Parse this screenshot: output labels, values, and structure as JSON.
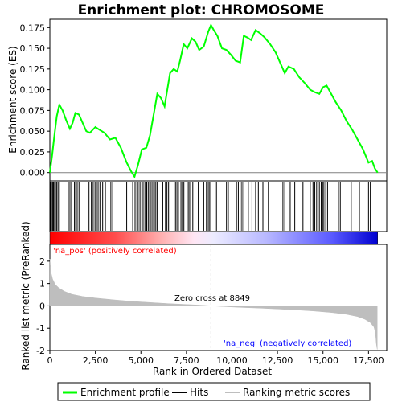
{
  "chart_data": {
    "type": "line",
    "title": "Enrichment plot: CHROMOSOME",
    "top_panel": {
      "ylabel": "Enrichment score (ES)",
      "ylim": [
        -0.01,
        0.185
      ],
      "yticks": [
        "0.000",
        "0.025",
        "0.050",
        "0.075",
        "0.100",
        "0.125",
        "0.150",
        "0.175"
      ],
      "ytick_values": [
        0.0,
        0.025,
        0.05,
        0.075,
        0.1,
        0.125,
        0.15,
        0.175
      ],
      "series_color": "#00ff00",
      "es_points": [
        [
          0,
          0.0
        ],
        [
          120,
          0.02
        ],
        [
          250,
          0.045
        ],
        [
          380,
          0.068
        ],
        [
          520,
          0.082
        ],
        [
          700,
          0.075
        ],
        [
          900,
          0.063
        ],
        [
          1100,
          0.053
        ],
        [
          1250,
          0.06
        ],
        [
          1400,
          0.072
        ],
        [
          1600,
          0.07
        ],
        [
          1800,
          0.06
        ],
        [
          2000,
          0.05
        ],
        [
          2200,
          0.048
        ],
        [
          2500,
          0.055
        ],
        [
          2700,
          0.052
        ],
        [
          3000,
          0.048
        ],
        [
          3300,
          0.04
        ],
        [
          3600,
          0.042
        ],
        [
          3900,
          0.03
        ],
        [
          4200,
          0.013
        ],
        [
          4450,
          0.002
        ],
        [
          4650,
          -0.005
        ],
        [
          4850,
          0.01
        ],
        [
          5050,
          0.028
        ],
        [
          5300,
          0.03
        ],
        [
          5500,
          0.045
        ],
        [
          5700,
          0.07
        ],
        [
          5900,
          0.095
        ],
        [
          6100,
          0.09
        ],
        [
          6300,
          0.08
        ],
        [
          6450,
          0.1
        ],
        [
          6600,
          0.12
        ],
        [
          6800,
          0.125
        ],
        [
          7000,
          0.122
        ],
        [
          7150,
          0.135
        ],
        [
          7350,
          0.155
        ],
        [
          7550,
          0.15
        ],
        [
          7800,
          0.162
        ],
        [
          8000,
          0.158
        ],
        [
          8200,
          0.148
        ],
        [
          8450,
          0.152
        ],
        [
          8700,
          0.17
        ],
        [
          8849,
          0.178
        ],
        [
          9000,
          0.172
        ],
        [
          9200,
          0.165
        ],
        [
          9450,
          0.15
        ],
        [
          9700,
          0.148
        ],
        [
          9950,
          0.142
        ],
        [
          10200,
          0.135
        ],
        [
          10450,
          0.133
        ],
        [
          10650,
          0.165
        ],
        [
          10850,
          0.163
        ],
        [
          11050,
          0.16
        ],
        [
          11300,
          0.172
        ],
        [
          11550,
          0.168
        ],
        [
          11800,
          0.163
        ],
        [
          12100,
          0.155
        ],
        [
          12400,
          0.145
        ],
        [
          12700,
          0.13
        ],
        [
          12900,
          0.12
        ],
        [
          13100,
          0.128
        ],
        [
          13400,
          0.125
        ],
        [
          13700,
          0.115
        ],
        [
          14000,
          0.108
        ],
        [
          14300,
          0.1
        ],
        [
          14550,
          0.097
        ],
        [
          14800,
          0.095
        ],
        [
          15000,
          0.103
        ],
        [
          15200,
          0.105
        ],
        [
          15450,
          0.095
        ],
        [
          15700,
          0.085
        ],
        [
          16000,
          0.075
        ],
        [
          16300,
          0.062
        ],
        [
          16600,
          0.052
        ],
        [
          16900,
          0.04
        ],
        [
          17200,
          0.028
        ],
        [
          17500,
          0.012
        ],
        [
          17700,
          0.014
        ],
        [
          17850,
          0.005
        ],
        [
          18000,
          0.0
        ]
      ]
    },
    "hits_panel": {
      "hit_positions": [
        30,
        90,
        150,
        200,
        260,
        310,
        380,
        450,
        520,
        1060,
        1150,
        1350,
        1420,
        1500,
        1600,
        2150,
        2280,
        2380,
        2480,
        2560,
        2650,
        2750,
        2900,
        3050,
        3350,
        3450,
        4220,
        4550,
        4680,
        4780,
        4850,
        4950,
        5050,
        5120,
        5220,
        5320,
        5400,
        5480,
        5560,
        5650,
        5740,
        5820,
        5900,
        6200,
        6350,
        6430,
        6520,
        6600,
        6900,
        6980,
        7060,
        7200,
        7280,
        7360,
        7600,
        7680,
        7850,
        8150,
        8450,
        8600,
        8700,
        8780,
        8849,
        9150,
        9700,
        9800,
        10250,
        10350,
        10450,
        10550,
        10650,
        10900,
        11100,
        11300,
        11450,
        11700,
        12000,
        12800,
        12900,
        13200,
        13450,
        13900,
        14300,
        14450,
        14550,
        14650,
        14800,
        14900,
        14980,
        15050,
        15150,
        15250,
        15850,
        15950,
        16550,
        17000,
        17500,
        17600
      ]
    },
    "metric_panel": {
      "ylabel": "Ranked list metric (PreRanked)",
      "xlabel": "Rank in Ordered Dataset",
      "xlim": [
        0,
        18500
      ],
      "xticks": [
        "0",
        "2,500",
        "5,000",
        "7,500",
        "10,000",
        "12,500",
        "15,000",
        "17,500"
      ],
      "xtick_values": [
        0,
        2500,
        5000,
        7500,
        10000,
        12500,
        15000,
        17500
      ],
      "ylim": [
        -2,
        2.75
      ],
      "yticks": [
        "-2",
        "-1",
        "0",
        "1",
        "2"
      ],
      "ytick_values": [
        -2,
        -1,
        0,
        1,
        2
      ],
      "fill_color": "#bebebe",
      "metric_points": [
        [
          0,
          2.1
        ],
        [
          60,
          1.5
        ],
        [
          150,
          1.2
        ],
        [
          300,
          0.95
        ],
        [
          500,
          0.8
        ],
        [
          800,
          0.65
        ],
        [
          1200,
          0.52
        ],
        [
          1800,
          0.42
        ],
        [
          2500,
          0.35
        ],
        [
          3500,
          0.27
        ],
        [
          4500,
          0.2
        ],
        [
          5500,
          0.15
        ],
        [
          6500,
          0.1
        ],
        [
          7500,
          0.06
        ],
        [
          8300,
          0.03
        ],
        [
          8849,
          0.0
        ],
        [
          9500,
          -0.03
        ],
        [
          10500,
          -0.07
        ],
        [
          11500,
          -0.1
        ],
        [
          12500,
          -0.14
        ],
        [
          13500,
          -0.18
        ],
        [
          14500,
          -0.23
        ],
        [
          15500,
          -0.3
        ],
        [
          16300,
          -0.38
        ],
        [
          16900,
          -0.48
        ],
        [
          17300,
          -0.6
        ],
        [
          17600,
          -0.75
        ],
        [
          17800,
          -0.95
        ],
        [
          17880,
          -1.2
        ],
        [
          17930,
          -1.7
        ],
        [
          17980,
          -1.95
        ]
      ],
      "zero_cross_label": "Zero cross at 8849",
      "zero_cross": 8849,
      "pos_label": "'na_pos' (positively correlated)",
      "neg_label": "'na_neg' (negatively correlated)",
      "pos_color": "#ff0000",
      "neg_color": "#0000ff"
    },
    "legend": [
      {
        "label": "Enrichment profile",
        "color": "#00ff00"
      },
      {
        "label": "Hits",
        "color": "#000000"
      },
      {
        "label": "Ranking metric scores",
        "color": "#bebebe"
      }
    ],
    "dataset_size": 18000
  }
}
